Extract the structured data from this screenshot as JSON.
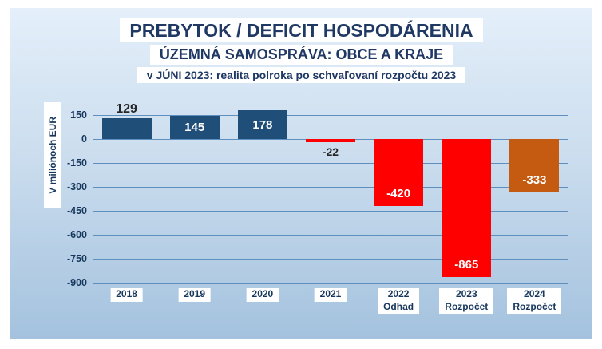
{
  "chart_data": {
    "type": "bar",
    "title": "PREBYTOK / DEFICIT HOSPODÁRENIA",
    "subtitle": "ÚZEMNÁ SAMOSPRÁVA: OBCE A KRAJE",
    "note": "v JÚNI 2023: realita polroka po schvaľovaní rozpočtu 2023",
    "ylabel": "V miliónoch EUR",
    "ylim": [
      -900,
      150
    ],
    "yticks": [
      150,
      0,
      -150,
      -300,
      -450,
      -600,
      -750,
      -900
    ],
    "grid": true,
    "legend": "none",
    "categories": [
      {
        "label": "2018",
        "sublabel": ""
      },
      {
        "label": "2019",
        "sublabel": ""
      },
      {
        "label": "2020",
        "sublabel": ""
      },
      {
        "label": "2021",
        "sublabel": ""
      },
      {
        "label": "2022",
        "sublabel": "Odhad"
      },
      {
        "label": "2023",
        "sublabel": "Rozpočet"
      },
      {
        "label": "2024",
        "sublabel": "Rozpočet"
      }
    ],
    "values": [
      129,
      145,
      178,
      -22,
      -420,
      -865,
      -333
    ],
    "labels": [
      "129",
      "145",
      "178",
      "-22",
      "-420",
      "-865",
      "-333"
    ],
    "bar_colors": [
      "#1f4e79",
      "#1f4e79",
      "#1f4e79",
      "#ff0000",
      "#ff0000",
      "#ff0000",
      "#c55a11"
    ],
    "label_styles": [
      "outside-top-dark",
      "inside-white-center",
      "inside-white-center",
      "outside-bottom-dark",
      "inside-white-bottom",
      "inside-white-bottom",
      "inside-white-bottom"
    ],
    "colors": {
      "title_text": "#1f3864",
      "axis_text": "#17375d",
      "gridline": "#5f8fbf",
      "background_top": "#e4effa",
      "background_bottom": "#a4c2de",
      "label_box": "#ffffff",
      "actual_bar": "#1f4e79",
      "deficit_bar": "#ff0000",
      "budget_2024_bar": "#c55a11",
      "value_dark": "#262626",
      "value_light": "#ffffff"
    }
  }
}
